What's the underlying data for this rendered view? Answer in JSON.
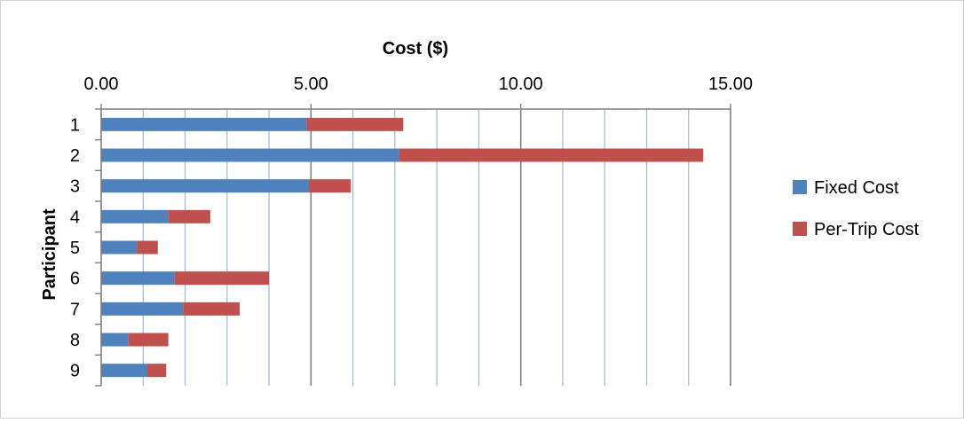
{
  "chart_data": {
    "type": "bar",
    "orientation": "horizontal",
    "stacked": true,
    "title": "",
    "xlabel": "Cost ($)",
    "ylabel": "Participant",
    "xlim": [
      0,
      15
    ],
    "x_ticks": [
      "0.00",
      "5.00",
      "10.00",
      "15.00"
    ],
    "x_axis_position": "top",
    "grid": true,
    "legend_position": "right",
    "categories": [
      "1",
      "2",
      "3",
      "4",
      "5",
      "6",
      "7",
      "8",
      "9"
    ],
    "series": [
      {
        "name": "Fixed Cost",
        "color": "#4F81BD",
        "values": [
          4.9,
          7.1,
          4.95,
          1.6,
          0.85,
          1.75,
          1.95,
          0.65,
          1.1
        ]
      },
      {
        "name": "Per-Trip Cost",
        "color": "#C0504D",
        "values": [
          2.3,
          7.25,
          1.0,
          1.0,
          0.5,
          2.25,
          1.35,
          0.95,
          0.45
        ]
      }
    ]
  }
}
